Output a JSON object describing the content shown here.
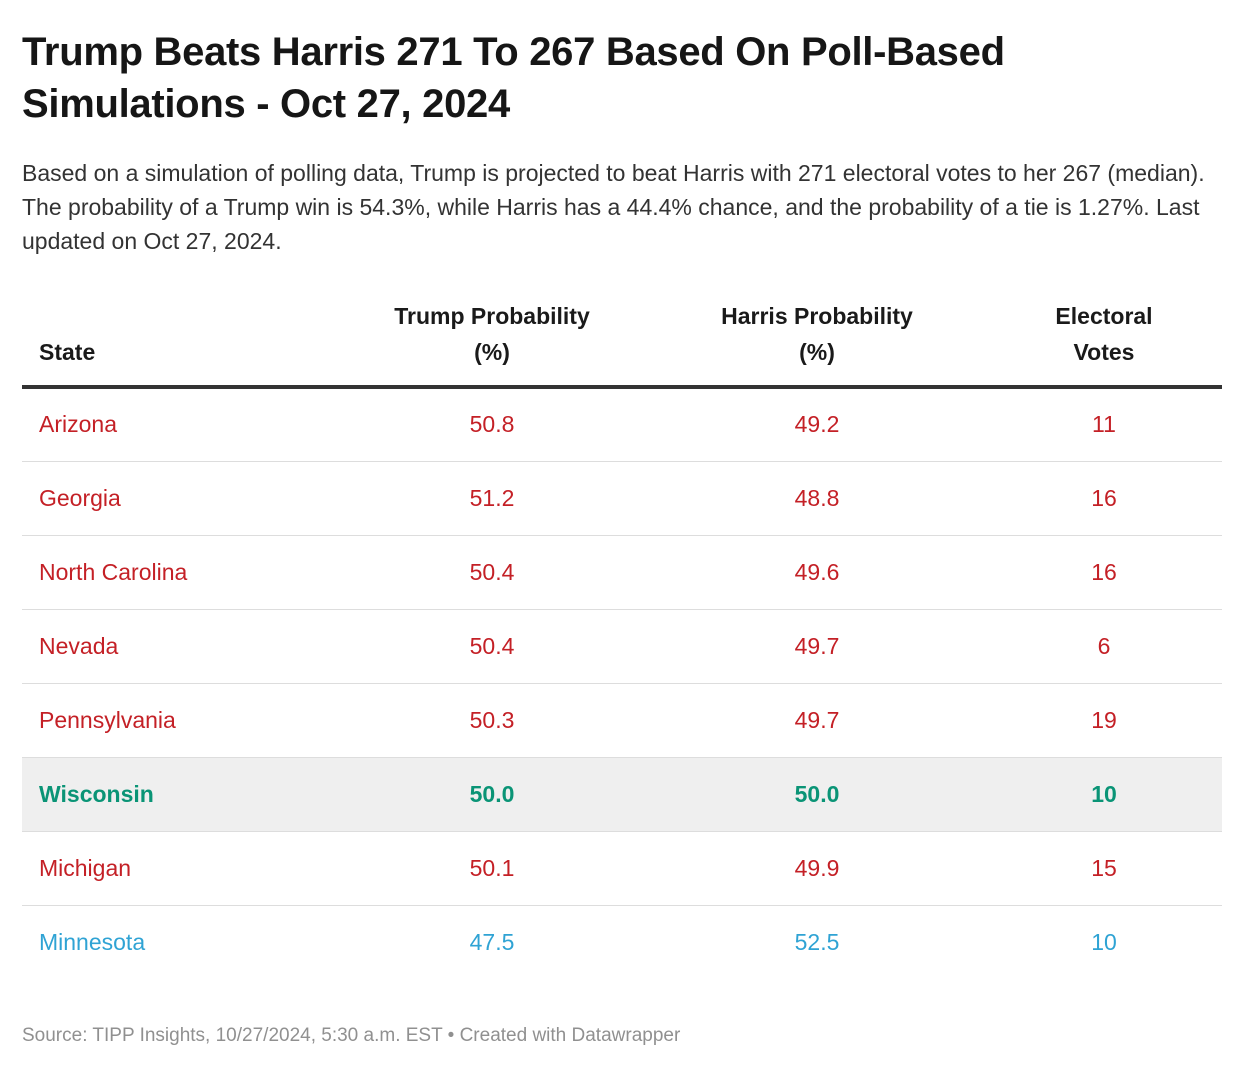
{
  "page": {
    "title": "Trump Beats Harris 271 To 267 Based On Poll-Based Simulations - Oct 27, 2024",
    "description": "Based on a simulation of polling data, Trump is projected to beat Harris with 271 electoral votes to her 267 (median). The probability of a Trump win is 54.3%, while Harris has a 44.4% chance, and the probability of a tie is 1.27%. Last updated on Oct 27, 2024.",
    "footer": "Source: TIPP Insights, 10/27/2024, 5:30 a.m. EST • Created with Datawrapper"
  },
  "table": {
    "columns": [
      {
        "line1": "State",
        "line2": ""
      },
      {
        "line1": "Trump Probability",
        "line2": "(%)"
      },
      {
        "line1": "Harris Probability",
        "line2": "(%)"
      },
      {
        "line1": "Electoral",
        "line2": "Votes"
      }
    ],
    "rows": [
      {
        "state": "Arizona",
        "trump": "50.8",
        "harris": "49.2",
        "electoral_votes": "11",
        "color": "red",
        "highlight": false
      },
      {
        "state": "Georgia",
        "trump": "51.2",
        "harris": "48.8",
        "electoral_votes": "16",
        "color": "red",
        "highlight": false
      },
      {
        "state": "North Carolina",
        "trump": "50.4",
        "harris": "49.6",
        "electoral_votes": "16",
        "color": "red",
        "highlight": false
      },
      {
        "state": "Nevada",
        "trump": "50.4",
        "harris": "49.7",
        "electoral_votes": "6",
        "color": "red",
        "highlight": false
      },
      {
        "state": "Pennsylvania",
        "trump": "50.3",
        "harris": "49.7",
        "electoral_votes": "19",
        "color": "red",
        "highlight": false
      },
      {
        "state": "Wisconsin",
        "trump": "50.0",
        "harris": "50.0",
        "electoral_votes": "10",
        "color": "green",
        "highlight": true
      },
      {
        "state": "Michigan",
        "trump": "50.1",
        "harris": "49.9",
        "electoral_votes": "15",
        "color": "red",
        "highlight": false
      },
      {
        "state": "Minnesota",
        "trump": "47.5",
        "harris": "52.5",
        "electoral_votes": "10",
        "color": "blue",
        "highlight": false
      }
    ]
  },
  "colors": {
    "trump_lead_red": "#c42026",
    "tie_green": "#0a9476",
    "harris_lead_blue": "#2fa3d4",
    "highlight_row_bg": "#efefef",
    "header_rule": "#333333",
    "row_separator": "#dddddd",
    "footer_gray": "#909090"
  },
  "chart_data": {
    "type": "table",
    "title": "Trump Beats Harris 271 To 267 Based On Poll-Based Simulations - Oct 27, 2024",
    "subtitle": "Based on a simulation of polling data, Trump is projected to beat Harris with 271 electoral votes to her 267 (median). The probability of a Trump win is 54.3%, while Harris has a 44.4% chance, and the probability of a tie is 1.27%. Last updated on Oct 27, 2024.",
    "columns": [
      "State",
      "Trump Probability (%)",
      "Harris Probability (%)",
      "Electoral Votes"
    ],
    "rows": [
      [
        "Arizona",
        50.8,
        49.2,
        11
      ],
      [
        "Georgia",
        51.2,
        48.8,
        16
      ],
      [
        "North Carolina",
        50.4,
        49.6,
        16
      ],
      [
        "Nevada",
        50.4,
        49.7,
        6
      ],
      [
        "Pennsylvania",
        50.3,
        49.7,
        19
      ],
      [
        "Wisconsin",
        50.0,
        50.0,
        10
      ],
      [
        "Michigan",
        50.1,
        49.9,
        15
      ],
      [
        "Minnesota",
        47.5,
        52.5,
        10
      ]
    ],
    "row_colors": [
      "red",
      "red",
      "red",
      "red",
      "red",
      "green",
      "red",
      "blue"
    ],
    "highlighted_row": "Wisconsin",
    "source": "Source: TIPP Insights, 10/27/2024, 5:30 a.m. EST • Created with Datawrapper"
  }
}
